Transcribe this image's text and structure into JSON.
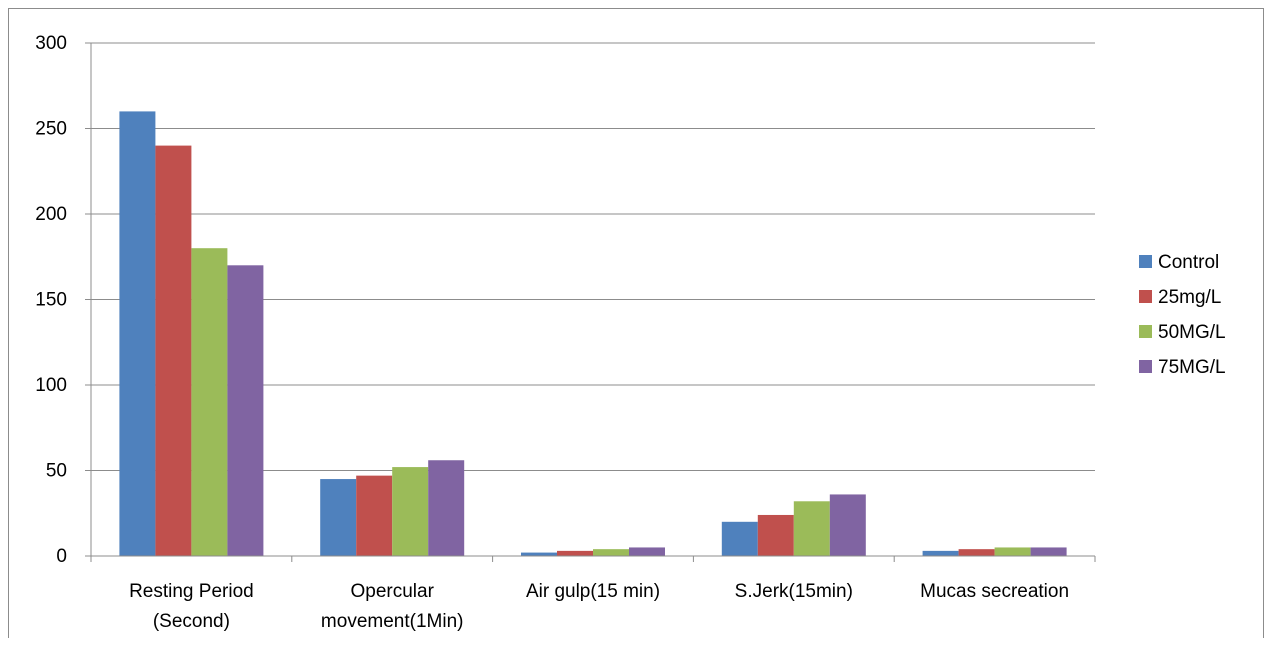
{
  "chart_data": {
    "type": "bar",
    "title": "",
    "xlabel": "",
    "ylabel": "",
    "ylim": [
      0,
      300
    ],
    "yticks": [
      0,
      50,
      100,
      150,
      200,
      250,
      300
    ],
    "grid": true,
    "legend_position": "right",
    "categories": [
      [
        "Resting Period",
        "(Second)"
      ],
      [
        "Opercular",
        "movement(1Min)"
      ],
      [
        "Air gulp(15 min)"
      ],
      [
        "S.Jerk(15min)"
      ],
      [
        "Mucas secreation"
      ]
    ],
    "series": [
      {
        "name": "Control",
        "color": "#4f81bd",
        "values": [
          260,
          45,
          2,
          20,
          3
        ]
      },
      {
        "name": "25mg/L",
        "color": "#c0504d",
        "values": [
          240,
          47,
          3,
          24,
          4
        ]
      },
      {
        "name": "50MG/L",
        "color": "#9bbb59",
        "values": [
          180,
          52,
          4,
          32,
          5
        ]
      },
      {
        "name": "75MG/L",
        "color": "#8064a2",
        "values": [
          170,
          56,
          5,
          36,
          5
        ]
      }
    ]
  }
}
